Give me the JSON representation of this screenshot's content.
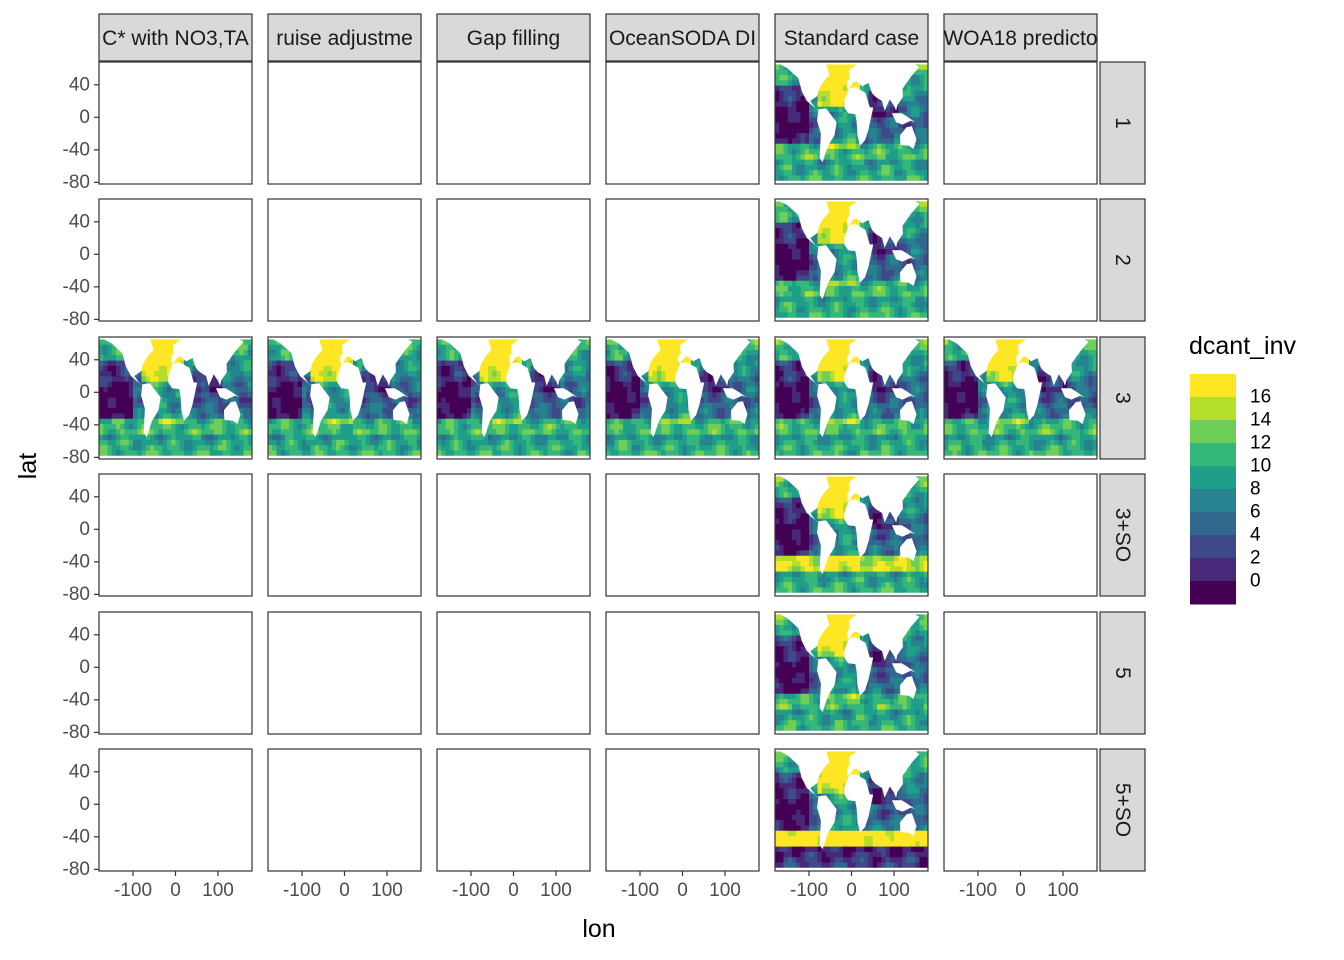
{
  "chart_data": {
    "type": "heatmap",
    "description_kind": "faceted map grid",
    "xlabel": "lon",
    "ylabel": "lat",
    "col_facets": [
      "C* with NO3,TA",
      "ruise adjustme",
      "Gap filling",
      "OceanSODA DI",
      "Standard case",
      "WOA18 predicto"
    ],
    "row_facets": [
      "1",
      "2",
      "3",
      "3+SO",
      "5",
      "5+SO"
    ],
    "x_ticks": [
      -100,
      0,
      100
    ],
    "x_tick_labels": [
      "-100",
      "0",
      "100"
    ],
    "y_ticks": [
      40,
      0,
      -40,
      -80
    ],
    "y_tick_labels": [
      "40",
      "0",
      "-40",
      "-80"
    ],
    "xlim": [
      -180,
      180
    ],
    "ylim": [
      -82,
      68
    ],
    "filled_panels": [
      {
        "row": "1",
        "col": "Standard case"
      },
      {
        "row": "2",
        "col": "Standard case"
      },
      {
        "row": "3",
        "col": "C* with NO3,TA"
      },
      {
        "row": "3",
        "col": "ruise adjustme"
      },
      {
        "row": "3",
        "col": "Gap filling"
      },
      {
        "row": "3",
        "col": "OceanSODA DI"
      },
      {
        "row": "3",
        "col": "Standard case"
      },
      {
        "row": "3",
        "col": "WOA18 predicto"
      },
      {
        "row": "3+SO",
        "col": "Standard case"
      },
      {
        "row": "5",
        "col": "Standard case"
      },
      {
        "row": "5+SO",
        "col": "Standard case"
      }
    ],
    "legend": {
      "title": "dcant_inv",
      "position": "right",
      "labels": [
        "16",
        "14",
        "12",
        "10",
        "8",
        "6",
        "4",
        "2",
        "0"
      ],
      "colors": [
        "#FDE725",
        "#B5DE2B",
        "#6ECE58",
        "#35B779",
        "#1F9E89",
        "#26828E",
        "#31688E",
        "#3E4989",
        "#482878",
        "#440154"
      ]
    },
    "grid": false,
    "panel_border_color": "#333333",
    "strip_fill": "#D9D9D9"
  }
}
